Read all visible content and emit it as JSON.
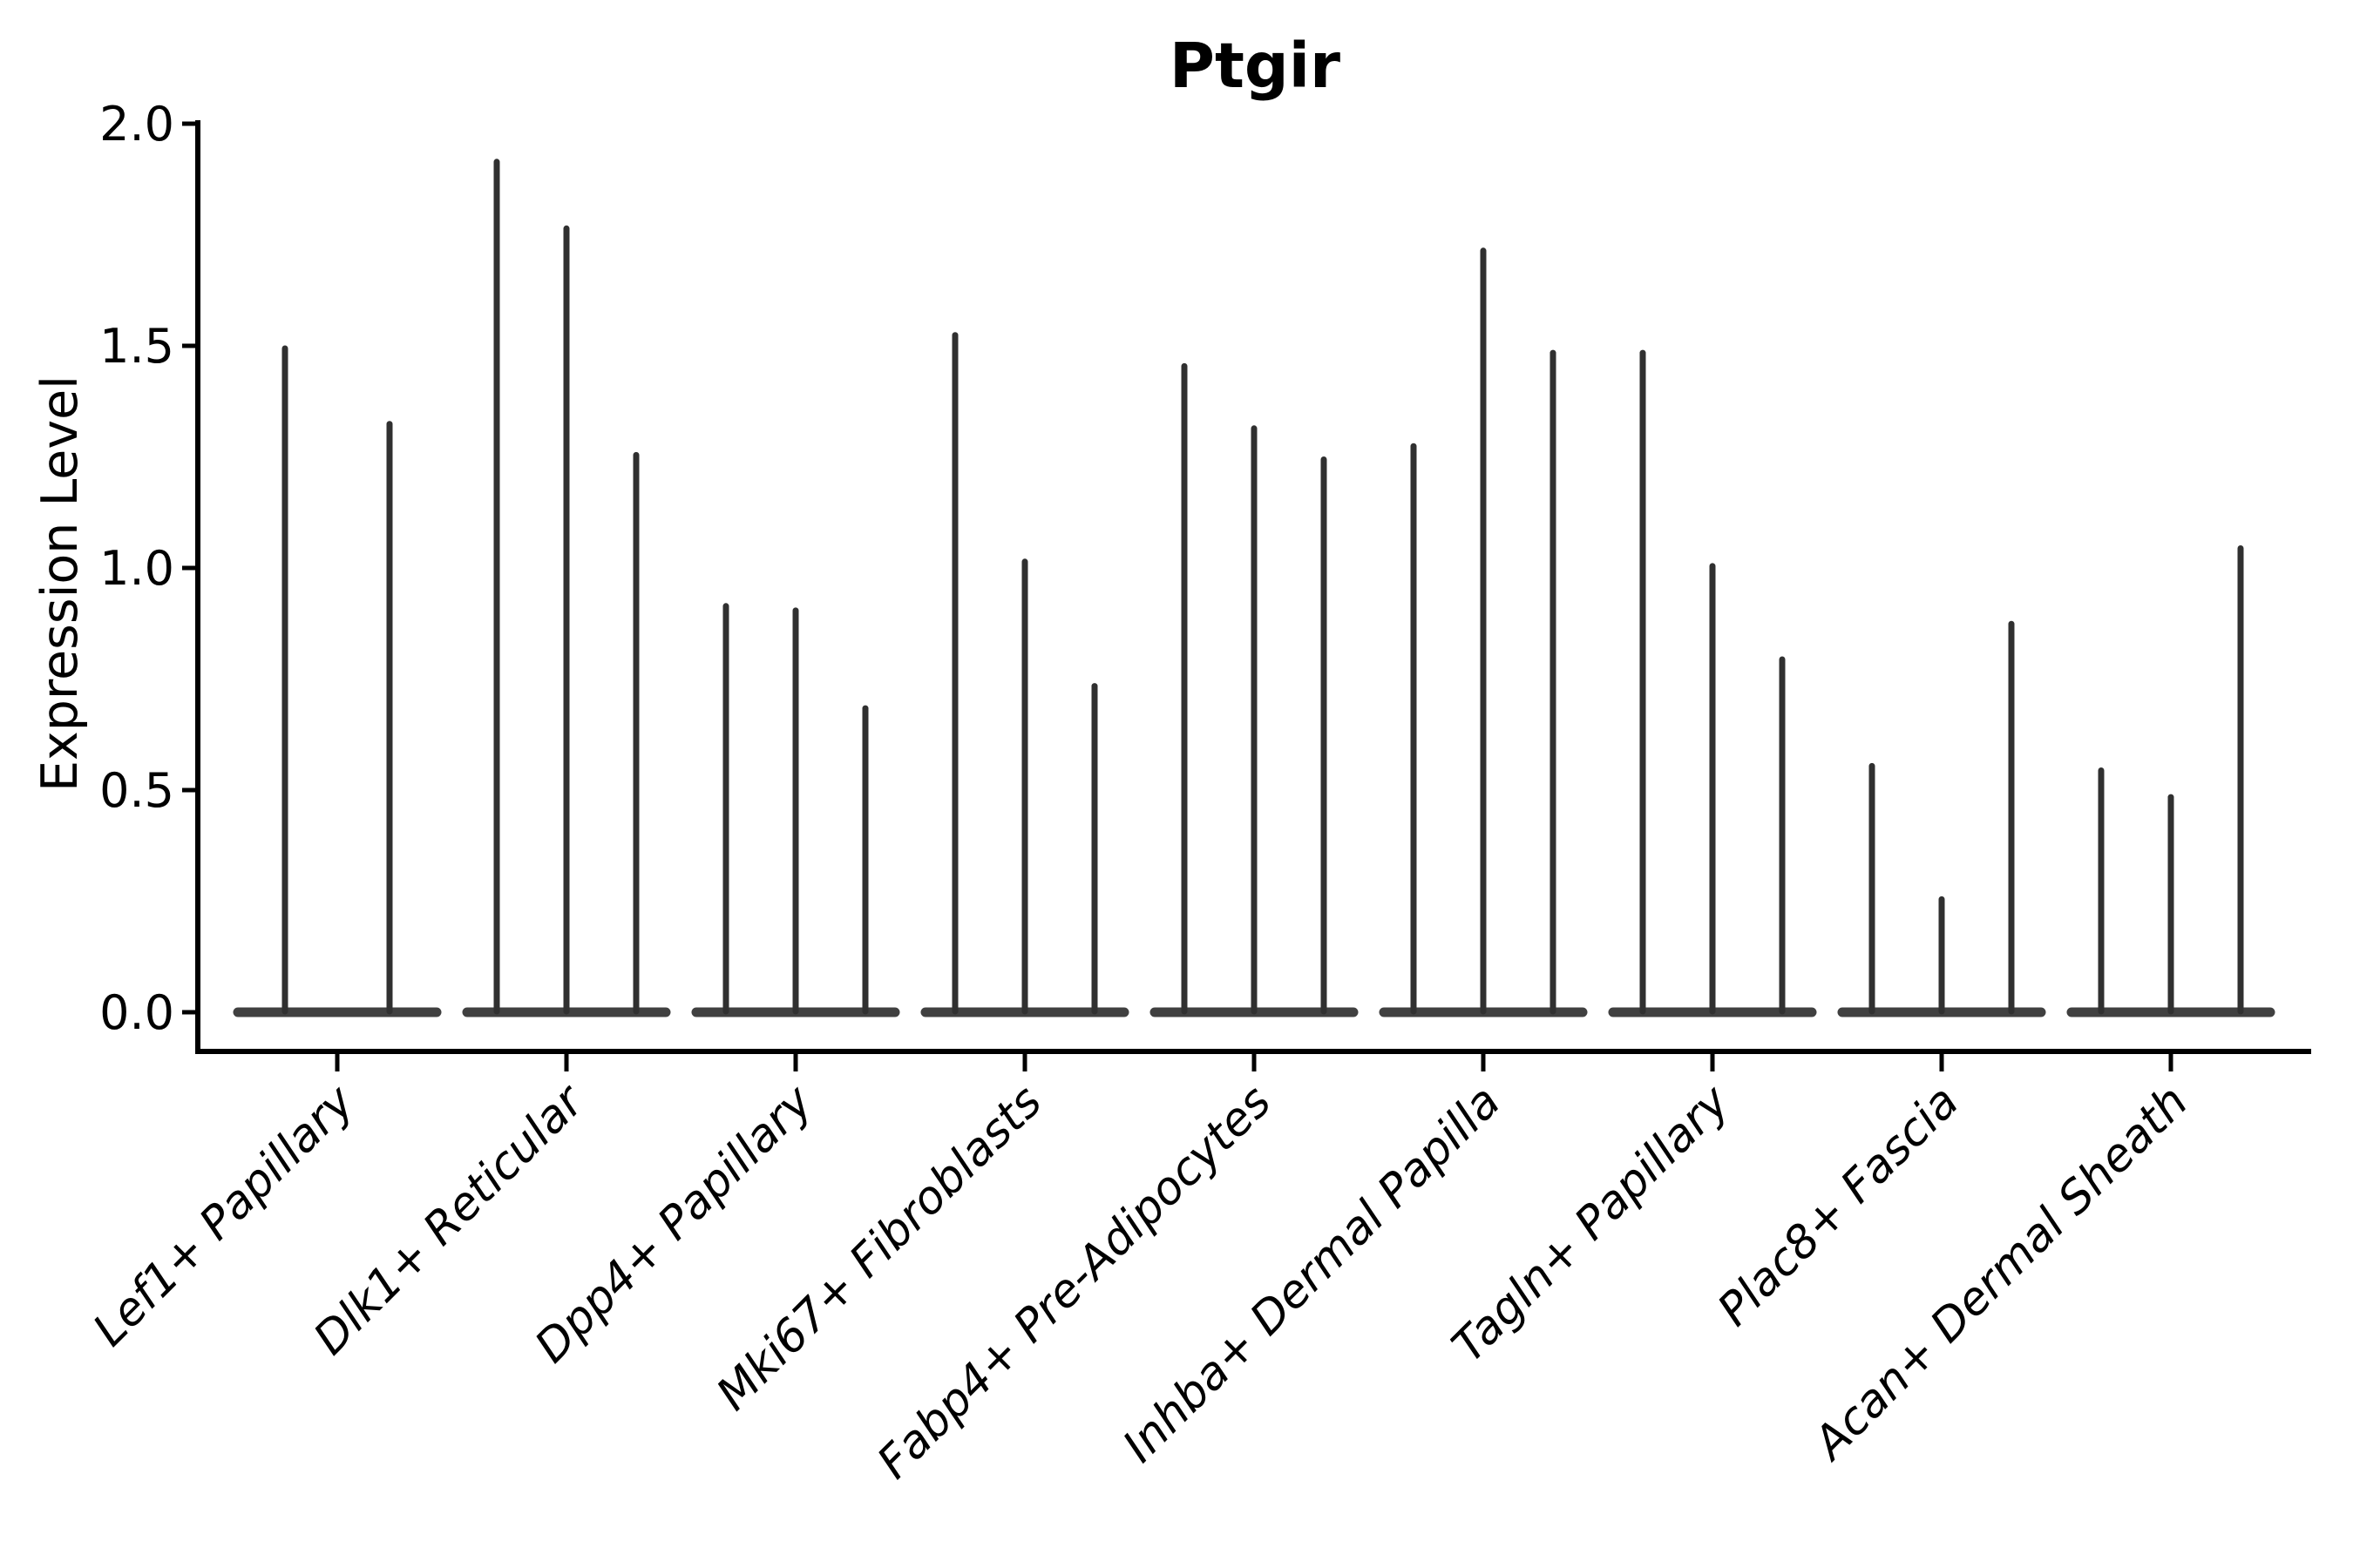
{
  "chart_data": {
    "type": "violin",
    "title": "Ptgir",
    "xlabel": "",
    "ylabel": "Expression Level",
    "ytick_labels": [
      "0.0",
      "0.5",
      "1.0",
      "1.5",
      "2.0"
    ],
    "ytick_values": [
      0.0,
      0.5,
      1.0,
      1.5,
      2.0
    ],
    "ylim": [
      0.0,
      2.0
    ],
    "grid": false,
    "legend": "none",
    "categories": [
      "Lef1+ Papillary",
      "Dlk1+ Reticular",
      "Dpp4+ Papillary",
      "Mki67+ Fibroblasts",
      "Fabp4+ Pre-Adipocytes",
      "Inhba+ Dermal Papilla",
      "Tagln+ Papillary",
      "Plac8+ Fascia",
      "Acan+ Dermal Sheath"
    ],
    "groups": [
      {
        "category": "Lef1+ Papillary",
        "violin_max_values": [
          1.5,
          1.33
        ]
      },
      {
        "category": "Dlk1+ Reticular",
        "violin_max_values": [
          1.92,
          1.77,
          1.26
        ]
      },
      {
        "category": "Dpp4+ Papillary",
        "violin_max_values": [
          0.92,
          0.91,
          0.69
        ]
      },
      {
        "category": "Mki67+ Fibroblasts",
        "violin_max_values": [
          1.53,
          1.02,
          0.74
        ]
      },
      {
        "category": "Fabp4+ Pre-Adipocytes",
        "violin_max_values": [
          1.46,
          1.32,
          1.25
        ]
      },
      {
        "category": "Inhba+ Dermal Papilla",
        "violin_max_values": [
          1.28,
          1.72,
          1.49
        ]
      },
      {
        "category": "Tagln+ Papillary",
        "violin_max_values": [
          1.49,
          1.01,
          0.8
        ]
      },
      {
        "category": "Plac8+ Fascia",
        "violin_max_values": [
          0.56,
          0.26,
          0.88
        ]
      },
      {
        "category": "Acan+ Dermal Sheath",
        "violin_max_values": [
          0.55,
          0.49,
          1.05
        ]
      }
    ],
    "description": "Violin plot of Ptgir expression; each category shows 2-3 extremely thin violins (mass concentrated at 0 with a narrow spike up to the max expressing cells).",
    "colors": {
      "violin_line": "#303030",
      "axis": "#000000",
      "text": "#000000",
      "background": "#ffffff"
    }
  }
}
